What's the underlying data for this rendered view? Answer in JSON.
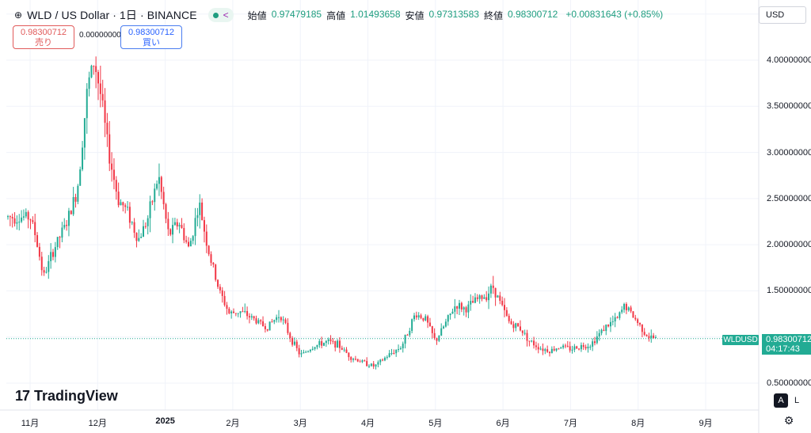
{
  "header": {
    "globe_icon": "globe-icon",
    "symbol_title": "WLD / US Dollar · 1日 · BINANCE",
    "ohlc": [
      {
        "label": "始値",
        "value": "0.97479185"
      },
      {
        "label": "高値",
        "value": "1.01493658"
      },
      {
        "label": "安値",
        "value": "0.97313583"
      },
      {
        "label": "終値",
        "value": "0.98300712"
      }
    ],
    "change": "+0.00831643 (+0.85%)"
  },
  "trade": {
    "sell_price": "0.98300712",
    "sell_label": "売り",
    "spread": "0.00000000",
    "buy_price": "0.98300712",
    "buy_label": "買い"
  },
  "currency": "USD",
  "last_price": {
    "symbol": "WLDUSD",
    "value": "0.98300712",
    "countdown": "04:17:43"
  },
  "logo_text": "TradingView",
  "buttons": {
    "auto": "A",
    "log": "L"
  },
  "colors": {
    "up": "#22ab94",
    "down": "#f23645",
    "accent": "#2962ff"
  },
  "chart_data": {
    "type": "candlestick",
    "title": "WLD / US Dollar · 1日 · BINANCE",
    "y_ticks": [
      {
        "label": "4.00000000",
        "value": 4.0
      },
      {
        "label": "3.50000000",
        "value": 3.5
      },
      {
        "label": "3.00000000",
        "value": 3.0
      },
      {
        "label": "2.50000000",
        "value": 2.5
      },
      {
        "label": "2.00000000",
        "value": 2.0
      },
      {
        "label": "1.50000000",
        "value": 1.5
      },
      {
        "label": "0.50000000",
        "value": 0.5
      }
    ],
    "x_ticks": [
      {
        "label": "11月",
        "month": 0,
        "bold": false
      },
      {
        "label": "12月",
        "month": 1,
        "bold": false
      },
      {
        "label": "2025",
        "month": 2,
        "bold": true
      },
      {
        "label": "2月",
        "month": 3,
        "bold": false
      },
      {
        "label": "3月",
        "month": 4,
        "bold": false
      },
      {
        "label": "4月",
        "month": 5,
        "bold": false
      },
      {
        "label": "5月",
        "month": 6,
        "bold": false
      },
      {
        "label": "6月",
        "month": 7,
        "bold": false
      },
      {
        "label": "7月",
        "month": 8,
        "bold": false
      },
      {
        "label": "8月",
        "month": 9,
        "bold": false
      },
      {
        "label": "9月",
        "month": 10,
        "bold": false
      }
    ],
    "ylim": [
      0.3,
      4.5
    ],
    "last_close": 0.98300712,
    "grid": true,
    "price_path": [
      [
        0,
        2.3
      ],
      [
        0.08,
        2.1
      ],
      [
        0.2,
        1.65
      ],
      [
        0.35,
        1.95
      ],
      [
        0.55,
        2.25
      ],
      [
        0.7,
        2.6
      ],
      [
        0.85,
        3.7
      ],
      [
        0.95,
        4.0
      ],
      [
        1.05,
        3.6
      ],
      [
        1.15,
        3.05
      ],
      [
        1.3,
        2.5
      ],
      [
        1.45,
        2.35
      ],
      [
        1.6,
        2.05
      ],
      [
        1.75,
        2.3
      ],
      [
        1.9,
        2.75
      ],
      [
        2.05,
        2.1
      ],
      [
        2.2,
        2.25
      ],
      [
        2.35,
        1.95
      ],
      [
        2.5,
        2.45
      ],
      [
        2.65,
        1.9
      ],
      [
        2.8,
        1.5
      ],
      [
        2.95,
        1.25
      ],
      [
        3.1,
        1.28
      ],
      [
        3.3,
        1.2
      ],
      [
        3.5,
        1.1
      ],
      [
        3.7,
        1.25
      ],
      [
        3.85,
        1.0
      ],
      [
        4.0,
        0.8
      ],
      [
        4.2,
        0.9
      ],
      [
        4.4,
        0.95
      ],
      [
        4.55,
        0.92
      ],
      [
        4.75,
        0.78
      ],
      [
        4.95,
        0.72
      ],
      [
        5.1,
        0.68
      ],
      [
        5.3,
        0.8
      ],
      [
        5.5,
        0.9
      ],
      [
        5.7,
        1.25
      ],
      [
        5.85,
        1.2
      ],
      [
        6.0,
        0.95
      ],
      [
        6.15,
        1.15
      ],
      [
        6.3,
        1.35
      ],
      [
        6.45,
        1.3
      ],
      [
        6.6,
        1.4
      ],
      [
        6.75,
        1.45
      ],
      [
        6.85,
        1.55
      ],
      [
        7.0,
        1.3
      ],
      [
        7.1,
        1.15
      ],
      [
        7.25,
        1.1
      ],
      [
        7.4,
        0.95
      ],
      [
        7.55,
        0.88
      ],
      [
        7.7,
        0.85
      ],
      [
        7.85,
        0.9
      ],
      [
        8.0,
        0.87
      ],
      [
        8.15,
        0.9
      ],
      [
        8.3,
        0.92
      ],
      [
        8.5,
        1.1
      ],
      [
        8.7,
        1.2
      ],
      [
        8.8,
        1.35
      ],
      [
        8.95,
        1.2
      ],
      [
        9.05,
        1.1
      ],
      [
        9.15,
        1.0
      ],
      [
        9.28,
        0.983
      ]
    ]
  }
}
